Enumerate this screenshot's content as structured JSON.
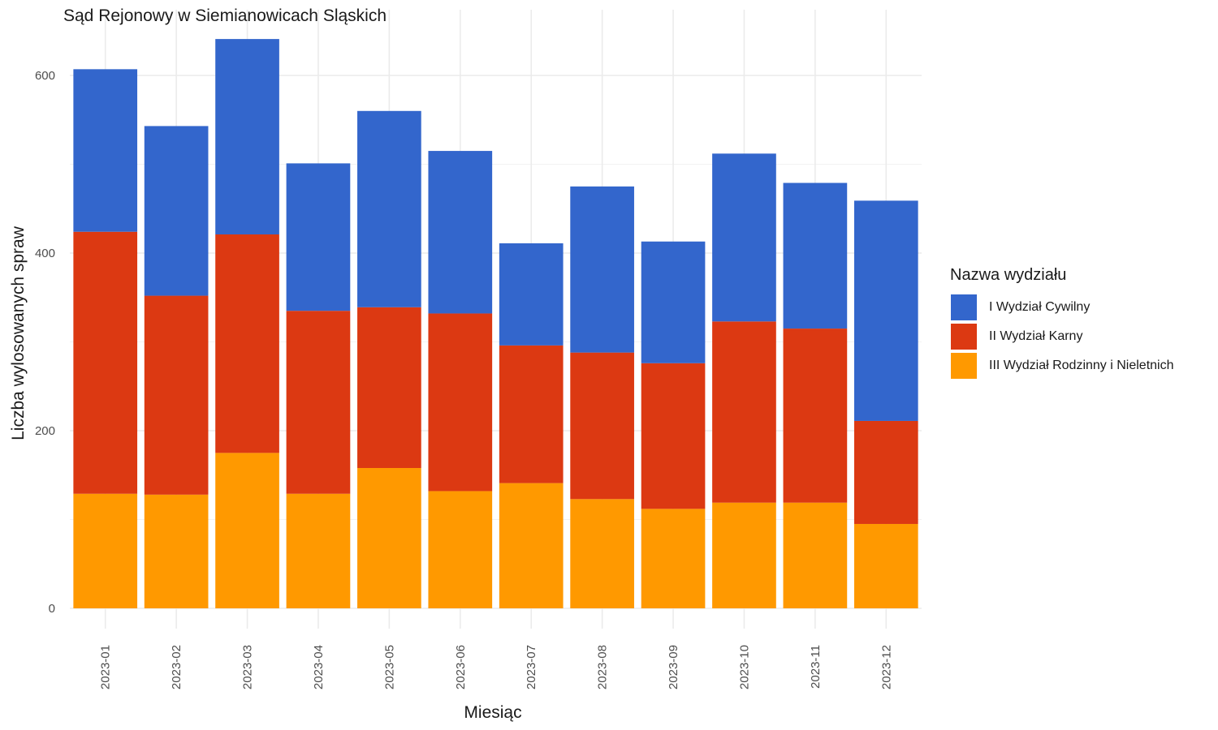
{
  "chart_data": {
    "type": "bar",
    "stacked": true,
    "title": "Sąd Rejonowy w Siemianowicach Sląskich",
    "xlabel": "Miesiąc",
    "ylabel": "Liczba wylosowanych spraw",
    "ylim": [
      0,
      640
    ],
    "yticks": [
      0,
      200,
      400,
      600
    ],
    "grid": true,
    "categories": [
      "2023-01",
      "2023-02",
      "2023-03",
      "2023-04",
      "2023-05",
      "2023-06",
      "2023-07",
      "2023-08",
      "2023-09",
      "2023-10",
      "2023-11",
      "2023-12"
    ],
    "series": [
      {
        "name": "III Wydział Rodzinny i Nieletnich",
        "color": "#FF9900",
        "values": [
          129,
          128,
          175,
          129,
          158,
          132,
          141,
          123,
          112,
          119,
          119,
          95
        ]
      },
      {
        "name": "II Wydział Karny",
        "color": "#DC3912",
        "values": [
          295,
          224,
          246,
          206,
          181,
          200,
          155,
          165,
          164,
          204,
          196,
          116
        ]
      },
      {
        "name": "I Wydział Cywilny",
        "color": "#3366CC",
        "values": [
          183,
          191,
          220,
          166,
          221,
          183,
          115,
          187,
          137,
          189,
          164,
          248
        ]
      }
    ],
    "legend": {
      "title": "Nazwa wydziału",
      "position": "right",
      "order": [
        "I Wydział Cywilny",
        "II Wydział Karny",
        "III Wydział Rodzinny i Nieletnich"
      ]
    }
  }
}
